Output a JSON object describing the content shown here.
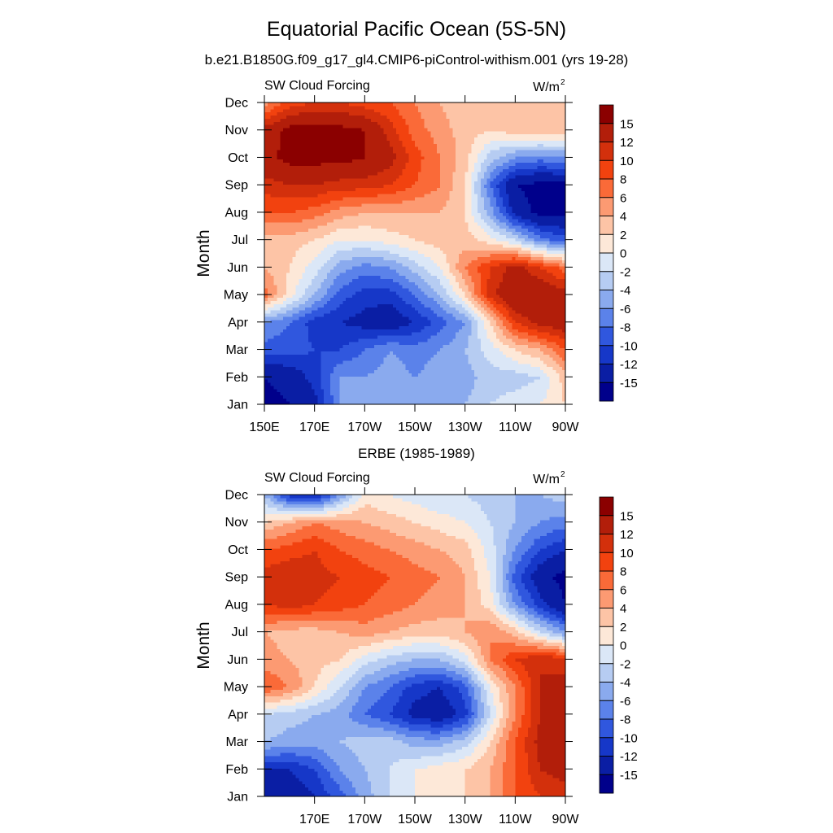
{
  "title": "Equatorial Pacific Ocean (5S-5N)",
  "panels": [
    {
      "header": "b.e21.B1850G.f09_g17_gl4.CMIP6-piControl-withism.001 (yrs 19-28)",
      "left_string": "SW Cloud Forcing",
      "right_string": "W/m",
      "right_sup": "2"
    },
    {
      "header": "ERBE (1985-1989)",
      "left_string": "SW Cloud Forcing",
      "right_string": "W/m",
      "right_sup": "2"
    }
  ],
  "colorbar": {
    "labels": [
      "15",
      "12",
      "10",
      "8",
      "6",
      "4",
      "2",
      "0",
      "-2",
      "-4",
      "-6",
      "-8",
      "-10",
      "-12",
      "-15"
    ],
    "colors": [
      "#8b0000",
      "#b21e0a",
      "#d3300c",
      "#f2420f",
      "#fa6a38",
      "#fc9a72",
      "#fdc4a6",
      "#fde8d8",
      "#dbe7f7",
      "#b6ccf2",
      "#8aaaee",
      "#5b82ea",
      "#3057de",
      "#1637c8",
      "#0a1ea4",
      "#00008b"
    ]
  },
  "chart_data": [
    {
      "type": "heatmap",
      "title": "b.e21.B1850G.f09_g17_gl4.CMIP6-piControl-withism.001 (yrs 19-28)",
      "ylabel": "Month",
      "xlabel": "",
      "units": "W/m2",
      "x_ticks": [
        "150E",
        "170E",
        "170W",
        "150W",
        "130W",
        "110W",
        "90W"
      ],
      "y_ticks": [
        "Jan",
        "Feb",
        "Mar",
        "Apr",
        "May",
        "Jun",
        "Jul",
        "Aug",
        "Sep",
        "Oct",
        "Nov",
        "Dec"
      ],
      "xlim_deg_east": [
        150,
        270
      ],
      "levels": [
        -15,
        -12,
        -10,
        -8,
        -6,
        -4,
        -2,
        0,
        2,
        4,
        6,
        8,
        10,
        12,
        15
      ],
      "lon": [
        150,
        160,
        170,
        180,
        190,
        200,
        210,
        220,
        230,
        240,
        250,
        260,
        270
      ],
      "values": [
        [
          -16,
          -15,
          -13,
          -6,
          -5,
          -5,
          -5,
          -5,
          -4,
          -2,
          -1,
          0,
          2
        ],
        [
          -15,
          -14,
          -11,
          -6,
          -6,
          -5,
          -6,
          -5,
          -5,
          -3,
          -3,
          -2,
          3
        ],
        [
          -9,
          -9,
          -10,
          -10,
          -8,
          -6,
          -7,
          -6,
          -4,
          -1,
          2,
          4,
          8
        ],
        [
          -6,
          -8,
          -11,
          -12,
          -13,
          -14,
          -12,
          -9,
          -6,
          2,
          10,
          13,
          14
        ],
        [
          7,
          1,
          -4,
          -9,
          -11,
          -11,
          -8,
          -4,
          2,
          11,
          15,
          15,
          13
        ],
        [
          4,
          2,
          -1,
          -5,
          -7,
          -6,
          -3,
          0,
          6,
          10,
          13,
          10,
          7
        ],
        [
          3,
          3,
          2,
          0,
          0,
          1,
          2,
          3,
          3,
          1,
          -2,
          -7,
          -9
        ],
        [
          8,
          8,
          7,
          5,
          4,
          4,
          4,
          4,
          2,
          -5,
          -13,
          -16,
          -16
        ],
        [
          11,
          12,
          12,
          11,
          11,
          10,
          8,
          6,
          2,
          -8,
          -15,
          -16,
          -16
        ],
        [
          14,
          16,
          16,
          16,
          15,
          13,
          9,
          6,
          3,
          -3,
          -6,
          -7,
          -6
        ],
        [
          13,
          16,
          16,
          16,
          15,
          11,
          7,
          5,
          3,
          2,
          3,
          4,
          3
        ],
        [
          5,
          9,
          10,
          10,
          9,
          8,
          6,
          4,
          2,
          2,
          3,
          2,
          2
        ]
      ]
    },
    {
      "type": "heatmap",
      "title": "ERBE (1985-1989)",
      "ylabel": "Month",
      "xlabel": "",
      "units": "W/m2",
      "x_ticks": [
        "170E",
        "170W",
        "150W",
        "130W",
        "110W",
        "90W"
      ],
      "y_ticks": [
        "Jan",
        "Feb",
        "Mar",
        "Apr",
        "May",
        "Jun",
        "Jul",
        "Aug",
        "Sep",
        "Oct",
        "Nov",
        "Dec"
      ],
      "xlim_deg_east": [
        150,
        270
      ],
      "levels": [
        -15,
        -12,
        -10,
        -8,
        -6,
        -4,
        -2,
        0,
        2,
        4,
        6,
        8,
        10,
        12,
        15
      ],
      "lon": [
        150,
        160,
        170,
        180,
        190,
        200,
        210,
        220,
        230,
        240,
        250,
        260,
        270
      ],
      "values": [
        [
          -13,
          -14,
          -12,
          -9,
          -5,
          -2,
          0,
          1,
          2,
          4,
          8,
          10,
          11
        ],
        [
          -12,
          -12,
          -10,
          -6,
          -4,
          -2,
          0,
          1,
          2,
          4,
          8,
          12,
          13
        ],
        [
          -4,
          -5,
          -5,
          -4,
          -3,
          -3,
          -5,
          -5,
          -3,
          2,
          8,
          13,
          15
        ],
        [
          -2,
          -3,
          -4,
          -5,
          -8,
          -10,
          -13,
          -14,
          -11,
          -2,
          6,
          12,
          14
        ],
        [
          8,
          6,
          2,
          -2,
          -6,
          -8,
          -11,
          -12,
          -9,
          0,
          6,
          12,
          13
        ],
        [
          5,
          4,
          3,
          2,
          -1,
          -3,
          -4,
          -4,
          -1,
          6,
          10,
          12,
          11
        ],
        [
          4,
          3,
          3,
          4,
          5,
          4,
          3,
          3,
          4,
          6,
          3,
          -2,
          -6
        ],
        [
          10,
          11,
          10,
          9,
          8,
          7,
          6,
          5,
          4,
          1,
          -6,
          -11,
          -15
        ],
        [
          11,
          12,
          11,
          10,
          9,
          8,
          7,
          6,
          4,
          0,
          -9,
          -14,
          -16
        ],
        [
          8,
          9,
          10,
          8,
          7,
          6,
          5,
          4,
          3,
          -1,
          -6,
          -10,
          -12
        ],
        [
          2,
          4,
          6,
          5,
          4,
          3,
          2,
          1,
          0,
          -2,
          -4,
          -6,
          -7
        ],
        [
          -4,
          -11,
          -13,
          -6,
          1,
          0,
          -1,
          -2,
          -2,
          -3,
          -4,
          -4,
          -3
        ]
      ]
    }
  ]
}
